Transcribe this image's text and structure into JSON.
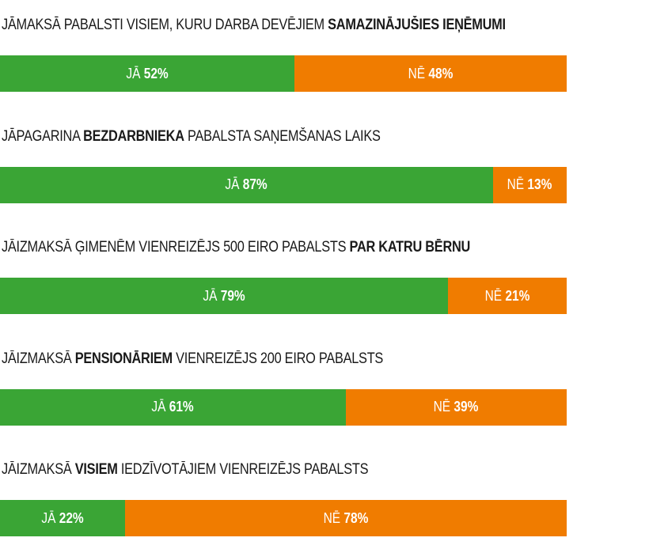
{
  "colors": {
    "yes": "#3aa535",
    "no": "#f07c00"
  },
  "chart_data": {
    "type": "bar",
    "orientation": "horizontal",
    "stacked": true,
    "normalized": true,
    "series": [
      {
        "name": "JĀ",
        "color": "#3aa535",
        "values": [
          52,
          87,
          79,
          61,
          22
        ]
      },
      {
        "name": "NĒ",
        "color": "#f07c00",
        "values": [
          48,
          13,
          21,
          39,
          78
        ]
      }
    ],
    "categories": [
      {
        "parts": [
          {
            "text": "JĀMAKSĀ PABALSTI VISIEM, KURU DARBA DEVĒJIEM ",
            "bold": false
          },
          {
            "text": "SAMAZINĀJUŠIES IEŅĒMUMI",
            "bold": true
          }
        ]
      },
      {
        "parts": [
          {
            "text": "JĀPAGARINA ",
            "bold": false
          },
          {
            "text": "BEZDARBNIEKA",
            "bold": true
          },
          {
            "text": " PABALSTA SAŅEMŠANAS LAIKS",
            "bold": false
          }
        ]
      },
      {
        "parts": [
          {
            "text": "JĀIZMAKSĀ ĢIMENĒM VIENREIZĒJS 500 EIRO PABALSTS ",
            "bold": false
          },
          {
            "text": "PAR KATRU BĒRNU",
            "bold": true
          }
        ]
      },
      {
        "parts": [
          {
            "text": "JĀIZMAKSĀ ",
            "bold": false
          },
          {
            "text": "PENSIONĀRIEM",
            "bold": true
          },
          {
            "text": " VIENREIZĒJS 200 EIRO PABALSTS",
            "bold": false
          }
        ]
      },
      {
        "parts": [
          {
            "text": "JĀIZMAKSĀ ",
            "bold": false
          },
          {
            "text": "VISIEM",
            "bold": true
          },
          {
            "text": " IEDZĪVOTĀJIEM VIENREIZĒJS PABALSTS",
            "bold": false
          }
        ]
      }
    ],
    "value_suffix": "%",
    "xlim": [
      0,
      100
    ],
    "legend": "none",
    "grid": false
  }
}
